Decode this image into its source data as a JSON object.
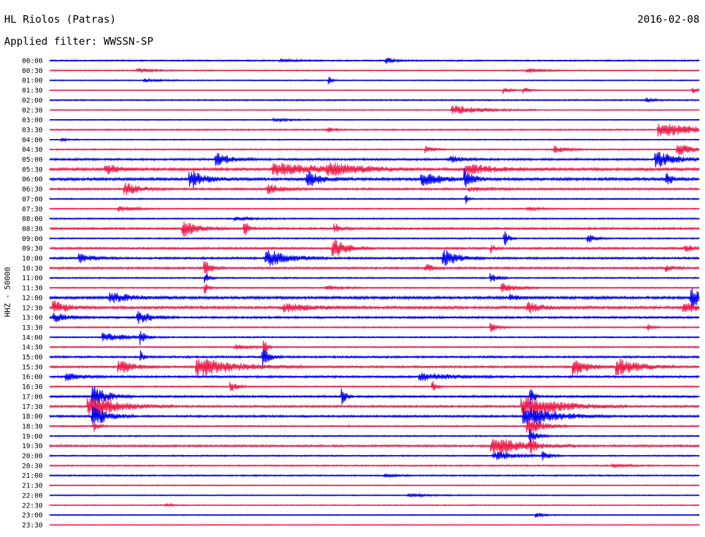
{
  "header": {
    "station": "HL Riolos (Patras)",
    "date": "2016-02-08",
    "filter_label": "Applied filter: WWSSN-SP",
    "channel_label": "HHZ - 50000"
  },
  "colors": {
    "even": "#0000ee",
    "odd": "#ee1c4a"
  },
  "chart_data": {
    "type": "line",
    "title": "HL Riolos (Patras)",
    "ylabel": "HHZ - 50000",
    "rows": [
      {
        "label": "00:00",
        "amp": 2,
        "events": [
          {
            "t": 0.52,
            "a": 4,
            "w": 0.012
          },
          {
            "t": 0.36,
            "a": 2,
            "w": 0.02
          }
        ]
      },
      {
        "label": "00:30",
        "amp": 1.5,
        "events": [
          {
            "t": 0.14,
            "a": 3,
            "w": 0.02
          },
          {
            "t": 0.74,
            "a": 3,
            "w": 0.02
          }
        ]
      },
      {
        "label": "01:00",
        "amp": 1.5,
        "events": [
          {
            "t": 0.43,
            "a": 6,
            "w": 0.004
          },
          {
            "t": 0.15,
            "a": 2,
            "w": 0.02
          }
        ]
      },
      {
        "label": "01:30",
        "amp": 1,
        "events": [
          {
            "t": 0.7,
            "a": 5,
            "w": 0.008
          },
          {
            "t": 0.73,
            "a": 5,
            "w": 0.008
          },
          {
            "t": 0.99,
            "a": 5,
            "w": 0.006
          }
        ]
      },
      {
        "label": "02:00",
        "amp": 2,
        "events": [
          {
            "t": 0.92,
            "a": 3,
            "w": 0.01
          }
        ]
      },
      {
        "label": "02:30",
        "amp": 1.5,
        "events": [
          {
            "t": 0.63,
            "a": 6,
            "w": 0.04
          }
        ]
      },
      {
        "label": "03:00",
        "amp": 1.5,
        "events": [
          {
            "t": 0.35,
            "a": 2,
            "w": 0.02
          }
        ]
      },
      {
        "label": "03:30",
        "amp": 2,
        "events": [
          {
            "t": 0.95,
            "a": 9,
            "w": 0.05
          },
          {
            "t": 0.43,
            "a": 3,
            "w": 0.01
          }
        ]
      },
      {
        "label": "04:00",
        "amp": 1.5,
        "events": [
          {
            "t": 0.02,
            "a": 2,
            "w": 0.01
          }
        ]
      },
      {
        "label": "04:30",
        "amp": 2,
        "events": [
          {
            "t": 0.58,
            "a": 5,
            "w": 0.01
          },
          {
            "t": 0.78,
            "a": 5,
            "w": 0.015
          },
          {
            "t": 0.97,
            "a": 8,
            "w": 0.02
          }
        ]
      },
      {
        "label": "05:00",
        "amp": 3,
        "events": [
          {
            "t": 0.26,
            "a": 8,
            "w": 0.02
          },
          {
            "t": 0.94,
            "a": 10,
            "w": 0.03
          },
          {
            "t": 0.62,
            "a": 4,
            "w": 0.02
          }
        ]
      },
      {
        "label": "05:30",
        "amp": 4,
        "events": [
          {
            "t": 0.09,
            "a": 6,
            "w": 0.02
          },
          {
            "t": 0.36,
            "a": 8,
            "w": 0.06
          },
          {
            "t": 0.44,
            "a": 6,
            "w": 0.05
          },
          {
            "t": 0.65,
            "a": 6,
            "w": 0.04
          }
        ]
      },
      {
        "label": "06:00",
        "amp": 4,
        "events": [
          {
            "t": 0.22,
            "a": 12,
            "w": 0.02
          },
          {
            "t": 0.4,
            "a": 10,
            "w": 0.02
          },
          {
            "t": 0.58,
            "a": 8,
            "w": 0.03
          },
          {
            "t": 0.64,
            "a": 14,
            "w": 0.01
          },
          {
            "t": 0.95,
            "a": 8,
            "w": 0.01
          }
        ]
      },
      {
        "label": "06:30",
        "amp": 3,
        "events": [
          {
            "t": 0.12,
            "a": 8,
            "w": 0.02
          },
          {
            "t": 0.34,
            "a": 6,
            "w": 0.02
          },
          {
            "t": 0.65,
            "a": 3,
            "w": 0.02
          }
        ]
      },
      {
        "label": "07:00",
        "amp": 2,
        "events": [
          {
            "t": 0.64,
            "a": 8,
            "w": 0.004
          }
        ]
      },
      {
        "label": "07:30",
        "amp": 2,
        "events": [
          {
            "t": 0.11,
            "a": 4,
            "w": 0.02
          },
          {
            "t": 0.74,
            "a": 2,
            "w": 0.02
          }
        ]
      },
      {
        "label": "08:00",
        "amp": 2,
        "events": [
          {
            "t": 0.29,
            "a": 3,
            "w": 0.02
          }
        ]
      },
      {
        "label": "08:30",
        "amp": 3,
        "events": [
          {
            "t": 0.21,
            "a": 10,
            "w": 0.02
          },
          {
            "t": 0.3,
            "a": 12,
            "w": 0.006
          },
          {
            "t": 0.44,
            "a": 6,
            "w": 0.01
          }
        ]
      },
      {
        "label": "09:00",
        "amp": 2,
        "events": [
          {
            "t": 0.7,
            "a": 12,
            "w": 0.006
          },
          {
            "t": 0.83,
            "a": 6,
            "w": 0.01
          }
        ]
      },
      {
        "label": "09:30",
        "amp": 3,
        "events": [
          {
            "t": 0.44,
            "a": 12,
            "w": 0.02
          },
          {
            "t": 0.68,
            "a": 6,
            "w": 0.006
          },
          {
            "t": 0.98,
            "a": 5,
            "w": 0.01
          }
        ]
      },
      {
        "label": "10:00",
        "amp": 3,
        "events": [
          {
            "t": 0.34,
            "a": 11,
            "w": 0.03
          },
          {
            "t": 0.61,
            "a": 12,
            "w": 0.02
          },
          {
            "t": 0.05,
            "a": 6,
            "w": 0.02
          }
        ]
      },
      {
        "label": "10:30",
        "amp": 3,
        "events": [
          {
            "t": 0.24,
            "a": 10,
            "w": 0.01
          },
          {
            "t": 0.58,
            "a": 6,
            "w": 0.01
          },
          {
            "t": 0.95,
            "a": 4,
            "w": 0.01
          }
        ]
      },
      {
        "label": "11:00",
        "amp": 2,
        "events": [
          {
            "t": 0.68,
            "a": 6,
            "w": 0.01
          },
          {
            "t": 0.24,
            "a": 8,
            "w": 0.006
          }
        ]
      },
      {
        "label": "11:30",
        "amp": 2,
        "events": [
          {
            "t": 0.24,
            "a": 8,
            "w": 0.006
          },
          {
            "t": 0.7,
            "a": 6,
            "w": 0.02
          },
          {
            "t": 0.43,
            "a": 3,
            "w": 0.02
          }
        ]
      },
      {
        "label": "12:00",
        "amp": 4,
        "events": [
          {
            "t": 0.1,
            "a": 6,
            "w": 0.03
          },
          {
            "t": 0.99,
            "a": 14,
            "w": 0.015
          },
          {
            "t": 0.71,
            "a": 4,
            "w": 0.01
          }
        ]
      },
      {
        "label": "12:30",
        "amp": 4,
        "events": [
          {
            "t": 0.01,
            "a": 8,
            "w": 0.02
          },
          {
            "t": 0.37,
            "a": 5,
            "w": 0.04
          },
          {
            "t": 0.74,
            "a": 7,
            "w": 0.02
          },
          {
            "t": 0.98,
            "a": 6,
            "w": 0.02
          }
        ]
      },
      {
        "label": "13:00",
        "amp": 3,
        "events": [
          {
            "t": 0.14,
            "a": 8,
            "w": 0.02
          },
          {
            "t": 0.01,
            "a": 6,
            "w": 0.02
          }
        ]
      },
      {
        "label": "13:30",
        "amp": 2,
        "events": [
          {
            "t": 0.68,
            "a": 6,
            "w": 0.01
          },
          {
            "t": 0.92,
            "a": 5,
            "w": 0.006
          }
        ]
      },
      {
        "label": "14:00",
        "amp": 2,
        "events": [
          {
            "t": 0.09,
            "a": 6,
            "w": 0.03
          },
          {
            "t": 0.14,
            "a": 10,
            "w": 0.006
          }
        ]
      },
      {
        "label": "14:30",
        "amp": 2,
        "events": [
          {
            "t": 0.33,
            "a": 14,
            "w": 0.004
          },
          {
            "t": 0.29,
            "a": 3,
            "w": 0.02
          }
        ]
      },
      {
        "label": "15:00",
        "amp": 3,
        "events": [
          {
            "t": 0.33,
            "a": 12,
            "w": 0.01
          },
          {
            "t": 0.14,
            "a": 10,
            "w": 0.004
          }
        ]
      },
      {
        "label": "15:30",
        "amp": 3,
        "events": [
          {
            "t": 0.24,
            "a": 12,
            "w": 0.05
          },
          {
            "t": 0.11,
            "a": 10,
            "w": 0.02
          },
          {
            "t": 0.81,
            "a": 12,
            "w": 0.02
          },
          {
            "t": 0.88,
            "a": 11,
            "w": 0.03
          }
        ]
      },
      {
        "label": "16:00",
        "amp": 3,
        "events": [
          {
            "t": 0.03,
            "a": 5,
            "w": 0.02
          },
          {
            "t": 0.58,
            "a": 5,
            "w": 0.04
          }
        ]
      },
      {
        "label": "16:30",
        "amp": 2,
        "events": [
          {
            "t": 0.59,
            "a": 8,
            "w": 0.006
          },
          {
            "t": 0.28,
            "a": 6,
            "w": 0.01
          }
        ]
      },
      {
        "label": "17:00",
        "amp": 3,
        "events": [
          {
            "t": 0.07,
            "a": 14,
            "w": 0.02
          },
          {
            "t": 0.45,
            "a": 12,
            "w": 0.006
          },
          {
            "t": 0.74,
            "a": 14,
            "w": 0.006
          }
        ]
      },
      {
        "label": "17:30",
        "amp": 3,
        "events": [
          {
            "t": 0.07,
            "a": 14,
            "w": 0.04
          },
          {
            "t": 0.74,
            "a": 14,
            "w": 0.05
          }
        ]
      },
      {
        "label": "18:00",
        "amp": 3,
        "events": [
          {
            "t": 0.07,
            "a": 14,
            "w": 0.02
          },
          {
            "t": 0.74,
            "a": 14,
            "w": 0.04
          }
        ]
      },
      {
        "label": "18:30",
        "amp": 2,
        "events": [
          {
            "t": 0.07,
            "a": 8,
            "w": 0.006
          },
          {
            "t": 0.74,
            "a": 12,
            "w": 0.02
          }
        ]
      },
      {
        "label": "19:00",
        "amp": 2,
        "events": [
          {
            "t": 0.74,
            "a": 10,
            "w": 0.01
          }
        ]
      },
      {
        "label": "19:30",
        "amp": 3,
        "events": [
          {
            "t": 0.69,
            "a": 12,
            "w": 0.04
          },
          {
            "t": 0.74,
            "a": 10,
            "w": 0.006
          }
        ]
      },
      {
        "label": "20:00",
        "amp": 2,
        "events": [
          {
            "t": 0.76,
            "a": 6,
            "w": 0.01
          },
          {
            "t": 0.69,
            "a": 6,
            "w": 0.03
          }
        ]
      },
      {
        "label": "20:30",
        "amp": 2,
        "events": [
          {
            "t": 0.87,
            "a": 2,
            "w": 0.02
          }
        ]
      },
      {
        "label": "21:00",
        "amp": 2,
        "events": [
          {
            "t": 0.52,
            "a": 2,
            "w": 0.02
          }
        ]
      },
      {
        "label": "21:30",
        "amp": 1.5,
        "events": []
      },
      {
        "label": "22:00",
        "amp": 1.5,
        "events": [
          {
            "t": 0.56,
            "a": 2,
            "w": 0.03
          }
        ]
      },
      {
        "label": "22:30",
        "amp": 1.5,
        "events": [
          {
            "t": 0.18,
            "a": 2,
            "w": 0.01
          }
        ]
      },
      {
        "label": "23:00",
        "amp": 1.5,
        "events": [
          {
            "t": 0.75,
            "a": 4,
            "w": 0.01
          }
        ]
      },
      {
        "label": "23:30",
        "amp": 1,
        "events": []
      }
    ]
  }
}
